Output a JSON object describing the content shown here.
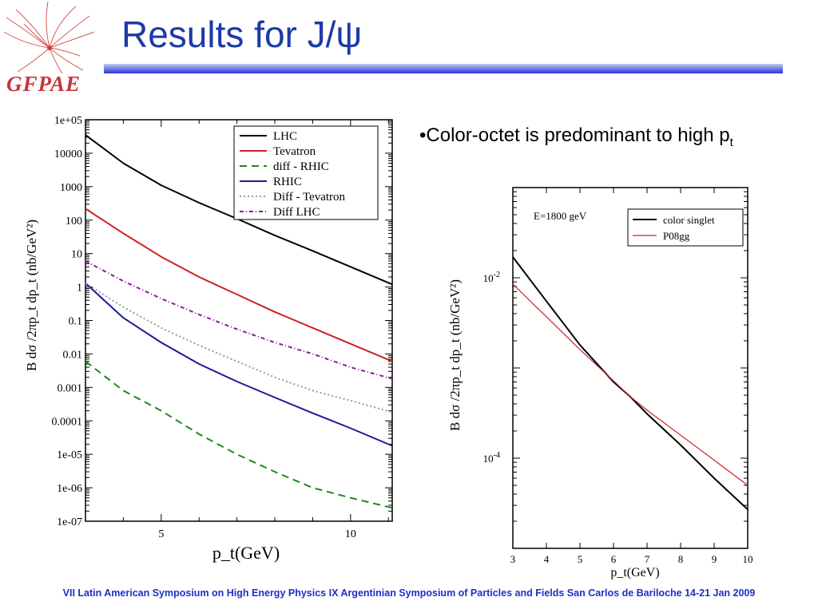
{
  "slide": {
    "title": "Results for J/ψ",
    "logo_text": "GFPAE",
    "bullet": {
      "prefix": "•Color-octet is predominant to high p",
      "sub": "t"
    },
    "footer": "VII Latin American Symposium on High Energy Physics  IX Argentinian Symposium of Particles and Fields San Carlos de Bariloche 14-21 Jan 2009"
  },
  "colors": {
    "title": "#1c3aa8",
    "footer": "#1c2fc8",
    "logo": "#c8353a"
  },
  "chart_data": [
    {
      "type": "line",
      "title": "",
      "xlabel": "p_t(GeV)",
      "ylabel": "B dσ /2πp_t dp_t (nb/GeV²)",
      "xlim": [
        3,
        11.1
      ],
      "ylim": [
        1e-07,
        100000
      ],
      "yscale": "log",
      "x_ticks": [
        "5",
        "10"
      ],
      "y_ticks": [
        "1e-07",
        "1e-06",
        "1e-05",
        "0.0001",
        "0.001",
        "0.01",
        "0.1",
        "1",
        "10",
        "100",
        "1000",
        "10000",
        "1e+05"
      ],
      "legend_position": "top-right",
      "x": [
        3,
        4,
        5,
        6,
        7,
        8,
        9,
        10,
        11.1
      ],
      "series": [
        {
          "name": "LHC",
          "color": "#000000",
          "style": "solid",
          "values": [
            35000,
            5000,
            1100,
            330,
            110,
            35,
            12,
            4,
            1.2
          ]
        },
        {
          "name": "Tevatron",
          "color": "#cc2222",
          "style": "solid",
          "values": [
            220,
            40,
            8,
            2,
            0.6,
            0.18,
            0.06,
            0.02,
            0.006
          ]
        },
        {
          "name": "diff - RHIC",
          "color": "#1a8a1a",
          "style": "dashed",
          "values": [
            0.006,
            0.0008,
            0.0002,
            4e-05,
            1e-05,
            3e-06,
            1e-06,
            5e-07,
            2.5e-07
          ]
        },
        {
          "name": "RHIC",
          "color": "#1a1a99",
          "style": "solid",
          "values": [
            1.3,
            0.12,
            0.022,
            0.005,
            0.0015,
            0.0005,
            0.00017,
            6e-05,
            1.8e-05
          ]
        },
        {
          "name": "Diff - Tevatron",
          "color": "#999999",
          "style": "dotted",
          "values": [
            1.3,
            0.25,
            0.06,
            0.018,
            0.006,
            0.002,
            0.0008,
            0.0004,
            0.00018
          ]
        },
        {
          "name": "Diff LHC",
          "color": "#8a1a9a",
          "style": "dashdot",
          "values": [
            6,
            1.5,
            0.45,
            0.15,
            0.055,
            0.022,
            0.01,
            0.004,
            0.0018
          ]
        }
      ]
    },
    {
      "type": "line",
      "title": "",
      "annotation": "E=1800 geV",
      "xlabel": "p_t(GeV)",
      "ylabel": "B dσ /2πp_t dp_t (nb/GeV²)",
      "xlim": [
        3,
        10
      ],
      "ylim": [
        1e-05,
        0.1
      ],
      "yscale": "log",
      "x_ticks": [
        "3",
        "4",
        "5",
        "6",
        "7",
        "8",
        "9",
        "10"
      ],
      "y_ticks": [
        {
          "base": "10",
          "exp": "-4"
        },
        {
          "base": "10",
          "exp": "-2"
        }
      ],
      "legend_position": "top-right",
      "x": [
        3,
        4,
        5,
        6,
        6.5,
        7,
        8,
        9,
        10
      ],
      "series": [
        {
          "name": "color singlet",
          "color": "#000000",
          "style": "solid",
          "values": [
            0.017,
            0.0055,
            0.0018,
            0.0007,
            0.00048,
            0.00031,
            0.00014,
            6e-05,
            2.7e-05
          ]
        },
        {
          "name": "P08gg",
          "color": "#cc2222",
          "style": "solid",
          "values": [
            0.0085,
            0.0037,
            0.0016,
            0.00072,
            0.00048,
            0.00034,
            0.00018,
            9.5e-05,
            5e-05
          ]
        }
      ]
    }
  ]
}
